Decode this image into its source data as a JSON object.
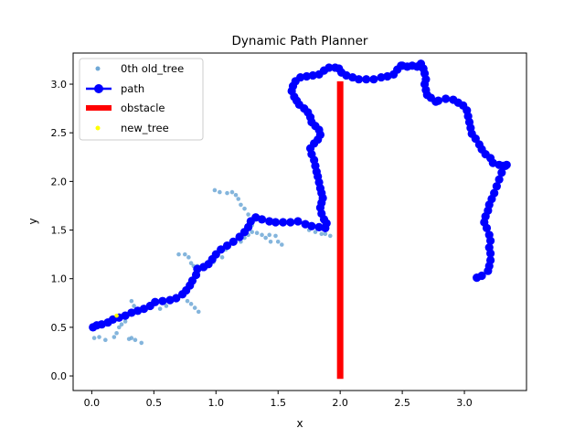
{
  "chart_data": {
    "type": "scatter",
    "title": "Dynamic Path Planner",
    "xlabel": "x",
    "ylabel": "y",
    "xlim": [
      -0.15,
      3.5
    ],
    "ylim": [
      -0.15,
      3.32
    ],
    "xticks": [
      "0.0",
      "0.5",
      "1.0",
      "1.5",
      "2.0",
      "2.5",
      "3.0"
    ],
    "yticks": [
      "0.0",
      "0.5",
      "1.0",
      "1.5",
      "2.0",
      "2.5",
      "3.0"
    ],
    "grid": false,
    "legend_position": "upper-left",
    "series": [
      {
        "name": "0th old_tree",
        "kind": "scatter",
        "color": "#6fa8d6",
        "points": [
          [
            0.02,
            0.39
          ],
          [
            0.06,
            0.4
          ],
          [
            0.11,
            0.37
          ],
          [
            0.18,
            0.4
          ],
          [
            0.2,
            0.44
          ],
          [
            0.22,
            0.5
          ],
          [
            0.24,
            0.53
          ],
          [
            0.27,
            0.56
          ],
          [
            0.3,
            0.38
          ],
          [
            0.32,
            0.39
          ],
          [
            0.35,
            0.37
          ],
          [
            0.4,
            0.34
          ],
          [
            0.32,
            0.77
          ],
          [
            0.34,
            0.72
          ],
          [
            0.38,
            0.65
          ],
          [
            0.46,
            0.7
          ],
          [
            0.55,
            0.69
          ],
          [
            0.6,
            0.72
          ],
          [
            0.77,
            0.77
          ],
          [
            0.8,
            0.74
          ],
          [
            0.83,
            0.7
          ],
          [
            0.86,
            0.66
          ],
          [
            0.7,
            1.25
          ],
          [
            0.75,
            1.25
          ],
          [
            0.78,
            1.22
          ],
          [
            0.8,
            1.16
          ],
          [
            0.82,
            1.13
          ],
          [
            0.85,
            1.13
          ],
          [
            0.98,
            1.17
          ],
          [
            1.05,
            1.22
          ],
          [
            1.08,
            1.3
          ],
          [
            0.99,
            1.91
          ],
          [
            1.03,
            1.89
          ],
          [
            1.09,
            1.88
          ],
          [
            1.13,
            1.89
          ],
          [
            1.16,
            1.86
          ],
          [
            1.18,
            1.82
          ],
          [
            1.2,
            1.76
          ],
          [
            1.23,
            1.72
          ],
          [
            1.26,
            1.66
          ],
          [
            1.27,
            1.6
          ],
          [
            1.29,
            1.55
          ],
          [
            1.2,
            1.38
          ],
          [
            1.23,
            1.42
          ],
          [
            1.26,
            1.45
          ],
          [
            1.29,
            1.48
          ],
          [
            1.33,
            1.47
          ],
          [
            1.37,
            1.45
          ],
          [
            1.4,
            1.42
          ],
          [
            1.43,
            1.45
          ],
          [
            1.48,
            1.44
          ],
          [
            1.5,
            1.38
          ],
          [
            1.53,
            1.35
          ],
          [
            1.44,
            1.38
          ],
          [
            1.75,
            1.5
          ],
          [
            1.8,
            1.48
          ],
          [
            1.85,
            1.46
          ],
          [
            1.88,
            1.46
          ],
          [
            1.92,
            1.44
          ]
        ]
      },
      {
        "name": "path",
        "kind": "line",
        "color": "#0000ff",
        "points": [
          [
            3.1,
            1.01
          ],
          [
            3.14,
            1.03
          ],
          [
            3.19,
            1.08
          ],
          [
            3.2,
            1.13
          ],
          [
            3.21,
            1.19
          ],
          [
            3.21,
            1.26
          ],
          [
            3.2,
            1.32
          ],
          [
            3.21,
            1.39
          ],
          [
            3.2,
            1.45
          ],
          [
            3.18,
            1.52
          ],
          [
            3.16,
            1.58
          ],
          [
            3.17,
            1.64
          ],
          [
            3.19,
            1.7
          ],
          [
            3.2,
            1.76
          ],
          [
            3.22,
            1.82
          ],
          [
            3.24,
            1.88
          ],
          [
            3.26,
            1.95
          ],
          [
            3.28,
            2.02
          ],
          [
            3.3,
            2.09
          ],
          [
            3.31,
            2.16
          ],
          [
            3.34,
            2.17
          ],
          [
            3.33,
            2.16
          ],
          [
            3.28,
            2.17
          ],
          [
            3.23,
            2.19
          ],
          [
            3.21,
            2.24
          ],
          [
            3.17,
            2.28
          ],
          [
            3.14,
            2.33
          ],
          [
            3.12,
            2.38
          ],
          [
            3.09,
            2.44
          ],
          [
            3.06,
            2.49
          ],
          [
            3.05,
            2.55
          ],
          [
            3.04,
            2.61
          ],
          [
            3.03,
            2.67
          ],
          [
            3.02,
            2.73
          ],
          [
            2.99,
            2.78
          ],
          [
            2.95,
            2.81
          ],
          [
            2.91,
            2.84
          ],
          [
            2.85,
            2.85
          ],
          [
            2.79,
            2.83
          ],
          [
            2.77,
            2.82
          ],
          [
            2.73,
            2.86
          ],
          [
            2.7,
            2.89
          ],
          [
            2.69,
            2.94
          ],
          [
            2.68,
            3.0
          ],
          [
            2.69,
            3.05
          ],
          [
            2.68,
            3.11
          ],
          [
            2.67,
            3.16
          ],
          [
            2.65,
            3.21
          ],
          [
            2.62,
            3.18
          ],
          [
            2.58,
            3.19
          ],
          [
            2.54,
            3.18
          ],
          [
            2.5,
            3.19
          ],
          [
            2.49,
            3.19
          ],
          [
            2.46,
            3.15
          ],
          [
            2.43,
            3.1
          ],
          [
            2.38,
            3.08
          ],
          [
            2.33,
            3.07
          ],
          [
            2.27,
            3.05
          ],
          [
            2.21,
            3.05
          ],
          [
            2.15,
            3.05
          ],
          [
            2.1,
            3.07
          ],
          [
            2.05,
            3.09
          ],
          [
            2.01,
            3.12
          ],
          [
            1.99,
            3.16
          ],
          [
            1.96,
            3.17
          ],
          [
            1.91,
            3.17
          ],
          [
            1.87,
            3.14
          ],
          [
            1.83,
            3.1
          ],
          [
            1.78,
            3.09
          ],
          [
            1.73,
            3.08
          ],
          [
            1.68,
            3.07
          ],
          [
            1.64,
            3.03
          ],
          [
            1.62,
            2.98
          ],
          [
            1.61,
            2.93
          ],
          [
            1.63,
            2.87
          ],
          [
            1.65,
            2.83
          ],
          [
            1.67,
            2.79
          ],
          [
            1.71,
            2.75
          ],
          [
            1.74,
            2.71
          ],
          [
            1.76,
            2.66
          ],
          [
            1.77,
            2.61
          ],
          [
            1.8,
            2.57
          ],
          [
            1.83,
            2.53
          ],
          [
            1.84,
            2.48
          ],
          [
            1.82,
            2.43
          ],
          [
            1.79,
            2.39
          ],
          [
            1.76,
            2.34
          ],
          [
            1.77,
            2.28
          ],
          [
            1.79,
            2.22
          ],
          [
            1.8,
            2.16
          ],
          [
            1.81,
            2.1
          ],
          [
            1.82,
            2.05
          ],
          [
            1.83,
            1.99
          ],
          [
            1.84,
            1.93
          ],
          [
            1.85,
            1.88
          ],
          [
            1.86,
            1.83
          ],
          [
            1.85,
            1.78
          ],
          [
            1.84,
            1.73
          ],
          [
            1.85,
            1.67
          ],
          [
            1.87,
            1.61
          ],
          [
            1.89,
            1.57
          ],
          [
            1.88,
            1.52
          ],
          [
            1.83,
            1.53
          ],
          [
            1.77,
            1.54
          ],
          [
            1.72,
            1.56
          ],
          [
            1.66,
            1.59
          ],
          [
            1.6,
            1.58
          ],
          [
            1.54,
            1.58
          ],
          [
            1.48,
            1.58
          ],
          [
            1.43,
            1.59
          ],
          [
            1.37,
            1.61
          ],
          [
            1.32,
            1.63
          ],
          [
            1.28,
            1.59
          ],
          [
            1.26,
            1.53
          ],
          [
            1.23,
            1.48
          ],
          [
            1.19,
            1.43
          ],
          [
            1.14,
            1.38
          ],
          [
            1.09,
            1.34
          ],
          [
            1.04,
            1.3
          ],
          [
            1.0,
            1.25
          ],
          [
            0.97,
            1.2
          ],
          [
            0.94,
            1.15
          ],
          [
            0.9,
            1.12
          ],
          [
            0.85,
            1.1
          ],
          [
            0.84,
            1.04
          ],
          [
            0.81,
            0.98
          ],
          [
            0.79,
            0.93
          ],
          [
            0.76,
            0.88
          ],
          [
            0.73,
            0.84
          ],
          [
            0.68,
            0.8
          ],
          [
            0.63,
            0.78
          ],
          [
            0.57,
            0.77
          ],
          [
            0.51,
            0.76
          ],
          [
            0.47,
            0.72
          ],
          [
            0.42,
            0.69
          ],
          [
            0.37,
            0.67
          ],
          [
            0.32,
            0.65
          ],
          [
            0.27,
            0.62
          ],
          [
            0.22,
            0.6
          ],
          [
            0.17,
            0.58
          ],
          [
            0.13,
            0.55
          ],
          [
            0.08,
            0.53
          ],
          [
            0.04,
            0.52
          ],
          [
            0.01,
            0.5
          ]
        ]
      },
      {
        "name": "obstacle",
        "kind": "line",
        "color": "#ff0000",
        "points": [
          [
            2.0,
            -0.03
          ],
          [
            2.0,
            3.03
          ]
        ]
      },
      {
        "name": "new_tree",
        "kind": "scatter",
        "color": "#ffff00",
        "points": [
          [
            0.2,
            0.62
          ]
        ]
      }
    ]
  }
}
